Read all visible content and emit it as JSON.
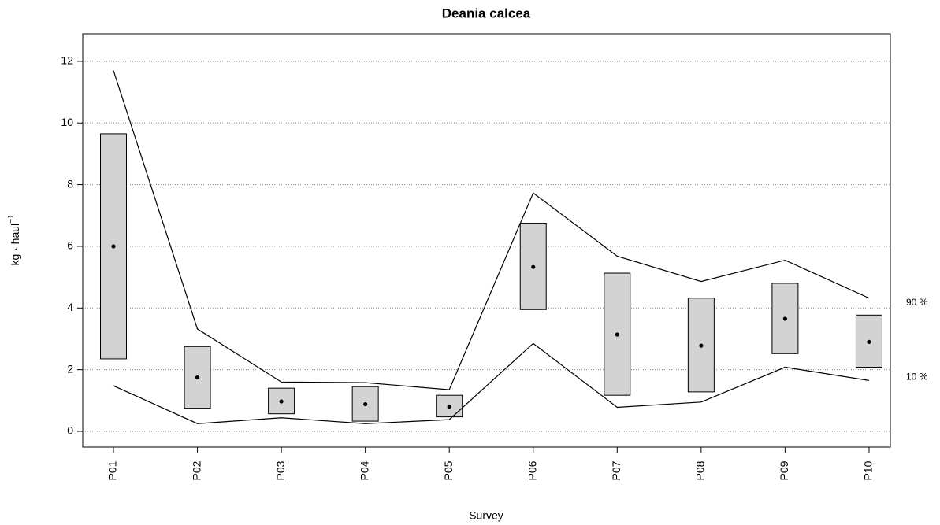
{
  "chart_data": {
    "type": "interval",
    "title": "Deania calcea",
    "x_label": "Survey",
    "y_label": "kg · haul",
    "y_label_superscript": "−1",
    "categories": [
      "P01",
      "P02",
      "P03",
      "P04",
      "P05",
      "P06",
      "P07",
      "P08",
      "P09",
      "P10"
    ],
    "mean": [
      6.0,
      1.75,
      0.97,
      0.88,
      0.8,
      5.33,
      3.14,
      2.78,
      3.65,
      2.9
    ],
    "box_low": [
      2.35,
      0.75,
      0.57,
      0.33,
      0.47,
      3.95,
      1.17,
      1.28,
      2.52,
      2.08
    ],
    "box_high": [
      9.65,
      2.75,
      1.4,
      1.45,
      1.17,
      6.75,
      5.13,
      4.32,
      4.8,
      3.77
    ],
    "box_color": "#d3d3d3",
    "series": [
      {
        "name": "90 %",
        "color": "#000000",
        "values": [
          11.7,
          3.32,
          1.6,
          1.58,
          1.35,
          7.73,
          5.68,
          4.86,
          5.55,
          4.32
        ]
      },
      {
        "name": "10 %",
        "color": "#000000",
        "values": [
          1.48,
          0.25,
          0.44,
          0.25,
          0.38,
          2.85,
          0.78,
          0.95,
          2.08,
          1.65
        ]
      }
    ],
    "ylim": [
      -0.51,
      12.89
    ],
    "yticks": [
      0,
      2,
      4,
      6,
      8,
      10,
      12
    ],
    "grid": true
  }
}
